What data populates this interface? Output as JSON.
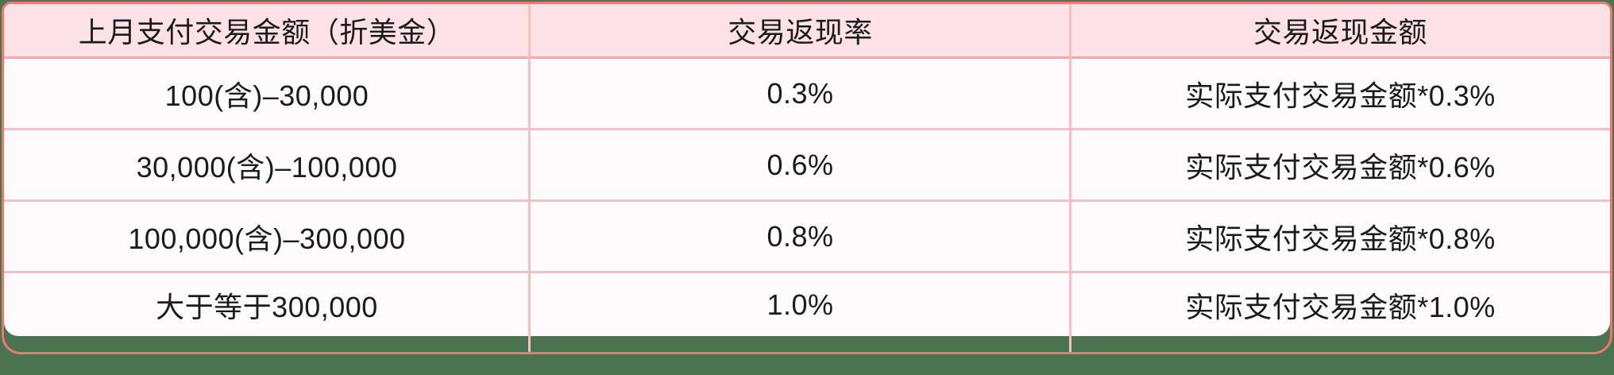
{
  "page": {
    "background_color": "#4A7450"
  },
  "table": {
    "title": "transaction-cashback-tiers",
    "border_color": "#F2766F",
    "header_background": "#FCE2E4",
    "row_background": "#FFFAFB",
    "grid_line_color": "#FABDC1",
    "text_color": "#1B1B1B",
    "columns": [
      "上月支付交易金额（折美金）",
      "交易返现率",
      "交易返现金额"
    ],
    "rows": [
      [
        "100(含)–30,000",
        "0.3%",
        "实际支付交易金额*0.3%"
      ],
      [
        "30,000(含)–100,000",
        "0.6%",
        "实际支付交易金额*0.6%"
      ],
      [
        "100,000(含)–300,000",
        "0.8%",
        "实际支付交易金额*0.8%"
      ],
      [
        "大于等于300,000",
        "1.0%",
        "实际支付交易金额*1.0%"
      ]
    ]
  }
}
